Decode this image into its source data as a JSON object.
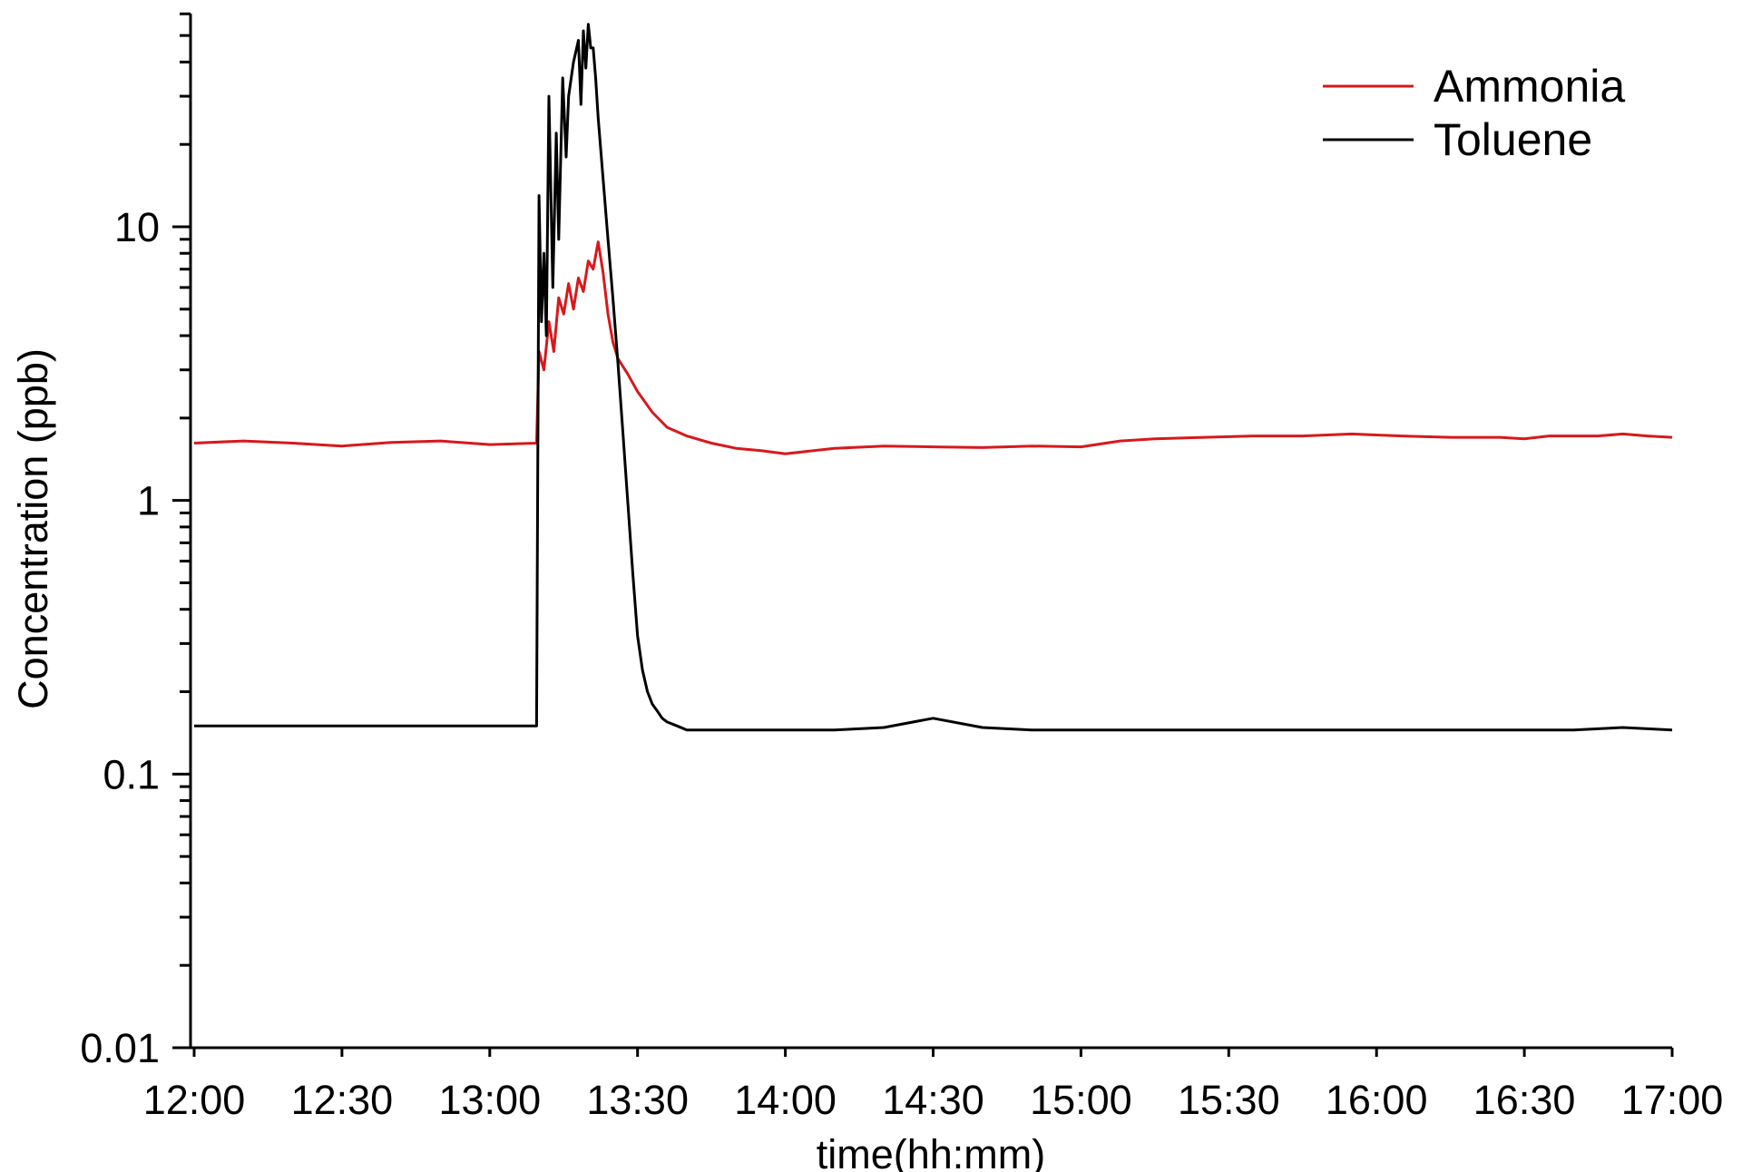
{
  "chart_data": {
    "type": "line",
    "title": "",
    "xlabel": "time(hh:mm)",
    "ylabel": "Concentration (ppb)",
    "x_unit": "minutes since 12:00",
    "xlim": [
      0,
      300
    ],
    "ylim": [
      0.01,
      60
    ],
    "y_scale": "log",
    "grid": false,
    "legend_position": "top-right",
    "x_ticks": [
      {
        "value": 0,
        "label": "12:00"
      },
      {
        "value": 30,
        "label": "12:30"
      },
      {
        "value": 60,
        "label": "13:00"
      },
      {
        "value": 90,
        "label": "13:30"
      },
      {
        "value": 120,
        "label": "14:00"
      },
      {
        "value": 150,
        "label": "14:30"
      },
      {
        "value": 180,
        "label": "15:00"
      },
      {
        "value": 210,
        "label": "15:30"
      },
      {
        "value": 240,
        "label": "16:00"
      },
      {
        "value": 270,
        "label": "16:30"
      },
      {
        "value": 300,
        "label": "17:00"
      }
    ],
    "y_ticks": [
      {
        "value": 0.01,
        "label": "0.01"
      },
      {
        "value": 0.1,
        "label": "0.1"
      },
      {
        "value": 1,
        "label": "1"
      },
      {
        "value": 10,
        "label": "10"
      }
    ],
    "series": [
      {
        "name": "Ammonia",
        "color": "#d7191c",
        "x": [
          0,
          10,
          20,
          30,
          40,
          50,
          60,
          69.5,
          70,
          71,
          72,
          73,
          74,
          75,
          76,
          77,
          78,
          79,
          80,
          81,
          82,
          83,
          84,
          85,
          86,
          88,
          90,
          93,
          96,
          100,
          105,
          110,
          115,
          120,
          130,
          140,
          150,
          160,
          170,
          180,
          188,
          195,
          205,
          215,
          225,
          235,
          245,
          255,
          265,
          270,
          275,
          285,
          290,
          295,
          300
        ],
        "y": [
          1.62,
          1.65,
          1.62,
          1.58,
          1.63,
          1.65,
          1.6,
          1.62,
          3.5,
          3.0,
          4.5,
          3.5,
          5.5,
          4.8,
          6.2,
          5.0,
          6.5,
          5.8,
          7.5,
          7.0,
          8.8,
          6.8,
          4.8,
          3.8,
          3.3,
          2.9,
          2.5,
          2.1,
          1.85,
          1.72,
          1.62,
          1.55,
          1.52,
          1.48,
          1.55,
          1.58,
          1.57,
          1.56,
          1.58,
          1.57,
          1.65,
          1.68,
          1.7,
          1.72,
          1.72,
          1.75,
          1.72,
          1.7,
          1.7,
          1.68,
          1.72,
          1.72,
          1.75,
          1.72,
          1.7
        ]
      },
      {
        "name": "Toluene",
        "color": "#000000",
        "x": [
          0,
          10,
          20,
          30,
          40,
          50,
          60,
          69.5,
          70,
          70.5,
          71,
          71.5,
          72,
          72.8,
          73.5,
          74,
          74.8,
          75.5,
          76,
          77,
          78,
          78.5,
          79,
          79.5,
          80,
          80.5,
          81,
          81.5,
          82,
          83,
          84,
          85,
          86,
          87,
          88,
          89,
          90,
          91,
          92,
          93,
          94,
          95,
          96,
          98,
          100,
          105,
          110,
          115,
          120,
          130,
          140,
          150,
          160,
          170,
          180,
          190,
          200,
          210,
          220,
          230,
          240,
          250,
          260,
          270,
          280,
          290,
          300
        ],
        "y": [
          0.15,
          0.15,
          0.15,
          0.15,
          0.15,
          0.15,
          0.15,
          0.15,
          13,
          4.5,
          8,
          4.0,
          30,
          6,
          22,
          9,
          35,
          18,
          30,
          40,
          48,
          28,
          52,
          38,
          55,
          45,
          45,
          35,
          25,
          15,
          9,
          5.5,
          3.2,
          1.8,
          1.0,
          0.55,
          0.32,
          0.24,
          0.2,
          0.18,
          0.17,
          0.16,
          0.155,
          0.15,
          0.145,
          0.145,
          0.145,
          0.145,
          0.145,
          0.145,
          0.148,
          0.16,
          0.148,
          0.145,
          0.145,
          0.145,
          0.145,
          0.145,
          0.145,
          0.145,
          0.145,
          0.145,
          0.145,
          0.145,
          0.145,
          0.148,
          0.145
        ]
      }
    ]
  }
}
